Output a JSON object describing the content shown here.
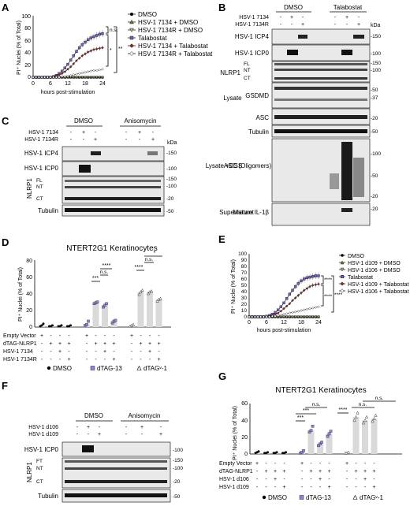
{
  "panels": [
    "A",
    "B",
    "C",
    "D",
    "E",
    "F",
    "G"
  ],
  "panel_a": {
    "ylabel": "PI⁺ Nuclei (% of Total)",
    "xlabel": "hours post-stimulation",
    "yticks": [
      "0",
      "20",
      "40",
      "60",
      "80",
      "100"
    ],
    "xticks": [
      "0",
      "6",
      "12",
      "18",
      "24"
    ],
    "legend": [
      "DMSO",
      "HSV-1 7134 + DMSO",
      "HSV-1 7134R + DMSO",
      "Talabostat",
      "HSV-1 7134 + Talabostat",
      "HSV-1 7134R + Talabostat"
    ],
    "sig": [
      "n.s.",
      "*",
      "**"
    ]
  },
  "panel_b": {
    "groups": [
      "DMSO",
      "Talabostat"
    ],
    "row_labels": [
      "HSV-1 7134",
      "HSV-1 7134R"
    ],
    "signs": [
      [
        "-",
        "+",
        "-",
        "-",
        "+",
        "-"
      ],
      [
        "-",
        "-",
        "+",
        "-",
        "-",
        "+"
      ]
    ],
    "kda": "kDa",
    "bands": [
      "HSV-1 ICP4",
      "HSV-1 ICP0",
      "NLRP1",
      "GSDMD",
      "ASC",
      "Tubulin",
      "ASC (Oligomers)",
      "Mature IL-1β"
    ],
    "sub_bands": [
      "FL",
      "NT",
      "CT"
    ],
    "sections": [
      "Lysate",
      "Lysate +DSS",
      "Supernatant"
    ],
    "markers": [
      "-150",
      "-100",
      "-150",
      "-100",
      "-50",
      "-37",
      "-20",
      "-50",
      "-100",
      "-50",
      "-20",
      "-20"
    ]
  },
  "panel_c": {
    "groups": [
      "DMSO",
      "Anisomycin"
    ],
    "row_labels": [
      "HSV-1 7134",
      "HSV-1 7134R"
    ],
    "signs": [
      [
        "-",
        "+",
        "-",
        "-",
        "+",
        "-"
      ],
      [
        "-",
        "-",
        "+",
        "-",
        "-",
        "+"
      ]
    ],
    "kda": "kDa",
    "bands": [
      "HSV-1 ICP4",
      "HSV-1 ICP0",
      "NLRP1",
      "Tubulin"
    ],
    "sub_bands": [
      "FL",
      "NT",
      "CT"
    ],
    "markers": [
      "-150",
      "-100",
      "-150",
      "-100",
      "-20",
      "-50"
    ]
  },
  "panel_d": {
    "title": "NTERT2G1 Keratinocytes",
    "ylabel": "PI⁺ Nuclei (% of Total)",
    "yticks": [
      "0",
      "20",
      "40",
      "60",
      "80"
    ],
    "row_labels": [
      "Empty Vector",
      "dTAG-NLRP1",
      "HSV-1 7134",
      "HSV-1 7134R"
    ],
    "signs": [
      [
        "+",
        "-",
        "-",
        "-",
        "+",
        "-",
        "-",
        "-",
        "+",
        "-",
        "-",
        "-"
      ],
      [
        "-",
        "+",
        "+",
        "+",
        "-",
        "+",
        "+",
        "+",
        "-",
        "+",
        "+",
        "+"
      ],
      [
        "-",
        "-",
        "+",
        "-",
        "-",
        "-",
        "+",
        "-",
        "-",
        "-",
        "+",
        "-"
      ],
      [
        "-",
        "-",
        "-",
        "+",
        "-",
        "-",
        "-",
        "+",
        "-",
        "-",
        "-",
        "+"
      ]
    ],
    "legend": [
      "DMSO",
      "dTAG-13",
      "dTAGᵛ-1"
    ],
    "sig": [
      "***",
      "****",
      "n.s.",
      "****",
      "n.s.",
      "*"
    ]
  },
  "panel_e": {
    "ylabel": "PI⁺ Nuclei (% of Total)",
    "xlabel": "hours post-stimulation",
    "yticks": [
      "0",
      "10",
      "20",
      "30",
      "40",
      "50",
      "60",
      "70",
      "80",
      "90",
      "100"
    ],
    "xticks": [
      "0",
      "6",
      "12",
      "18",
      "24"
    ],
    "legend": [
      "DMSO",
      "HSV-1 d109 + DMSO",
      "HSV-1 d106 + DMSO",
      "Talabostat",
      "HSV-1 d109 + Talabostat",
      "HSV-1 d106 + Talabostat"
    ],
    "sig": [
      "****",
      "****",
      "****"
    ]
  },
  "panel_f": {
    "groups": [
      "DMSO",
      "Anisomycin"
    ],
    "row_labels": [
      "HSV-1 d106",
      "HSV-1 d109"
    ],
    "signs": [
      [
        "-",
        "+",
        "-",
        "-",
        "+",
        "-"
      ],
      [
        "-",
        "-",
        "+",
        "-",
        "-",
        "+"
      ]
    ],
    "kda": "kDa",
    "bands": [
      "HSV-1 ICP0",
      "NLRP1",
      "Tubulin"
    ],
    "sub_bands": [
      "FT",
      "NT",
      "CT"
    ],
    "markers": [
      "-100",
      "-150",
      "-100",
      "-20",
      "-50"
    ]
  },
  "panel_g": {
    "title": "NTERT2G1 Keratinocytes",
    "ylabel": "PI⁺ Nuclei (% of Total)",
    "yticks": [
      "0",
      "20",
      "40",
      "60"
    ],
    "row_labels": [
      "Empty Vector",
      "dTAG-NLRP1",
      "HSV-1 d106",
      "HSV-1 d109"
    ],
    "signs": [
      [
        "+",
        "-",
        "-",
        "-",
        "+",
        "-",
        "-",
        "-",
        "+",
        "-",
        "-",
        "-"
      ],
      [
        "-",
        "+",
        "+",
        "+",
        "-",
        "+",
        "+",
        "+",
        "-",
        "+",
        "+",
        "+"
      ],
      [
        "-",
        "-",
        "+",
        "-",
        "-",
        "-",
        "+",
        "-",
        "-",
        "-",
        "+",
        "-"
      ],
      [
        "-",
        "-",
        "-",
        "+",
        "-",
        "-",
        "-",
        "+",
        "-",
        "-",
        "-",
        "+"
      ]
    ],
    "legend": [
      "DMSO",
      "dTAG-13",
      "dTAGᵛ-1"
    ],
    "sig": [
      "****",
      "***",
      "***",
      "n.s.",
      "n.s.",
      "n.s."
    ]
  },
  "chart_data": [
    {
      "type": "line",
      "panel": "A",
      "x": [
        0,
        1,
        2,
        3,
        4,
        5,
        6,
        7,
        8,
        9,
        10,
        11,
        12,
        13,
        14,
        15,
        16,
        17,
        18,
        19,
        20,
        21,
        22,
        23,
        24
      ],
      "ylim": [
        0,
        100
      ],
      "xlim": [
        0,
        24
      ],
      "series": [
        {
          "name": "DMSO",
          "values": [
            0,
            0,
            0,
            0,
            0,
            0,
            0,
            0,
            0,
            0,
            0,
            0,
            0,
            0,
            0,
            0,
            0,
            0,
            0,
            0,
            0,
            0,
            0,
            0,
            0
          ]
        },
        {
          "name": "HSV-1 7134 + DMSO",
          "values": [
            0,
            0,
            0,
            0,
            0,
            0,
            0,
            0,
            0,
            0,
            0,
            0,
            0,
            0,
            0,
            0,
            0,
            0,
            0,
            0,
            0,
            0,
            0,
            0,
            0
          ]
        },
        {
          "name": "HSV-1 7134R + DMSO",
          "values": [
            0,
            0,
            0,
            0,
            0,
            0,
            0,
            0,
            0,
            0,
            0,
            0,
            0,
            0,
            0,
            0,
            0,
            0,
            0,
            0,
            0,
            0,
            0,
            0,
            0
          ]
        },
        {
          "name": "Talabostat",
          "values": [
            0,
            0,
            0,
            0,
            0,
            0,
            0,
            1,
            3,
            6,
            10,
            15,
            21,
            28,
            35,
            42,
            48,
            53,
            57,
            61,
            64,
            66,
            68,
            70,
            71
          ]
        },
        {
          "name": "HSV-1 7134 + Talabostat",
          "values": [
            0,
            0,
            0,
            0,
            0,
            0,
            0,
            1,
            2,
            4,
            6,
            9,
            13,
            17,
            22,
            27,
            31,
            35,
            38,
            41,
            43,
            45,
            46,
            47,
            48
          ]
        },
        {
          "name": "HSV-1 7134R + Talabostat",
          "values": [
            0,
            0,
            0,
            0,
            0,
            0,
            0,
            0,
            0,
            0,
            1,
            1,
            2,
            3,
            4,
            5,
            6,
            7,
            8,
            9,
            10,
            11,
            11,
            12,
            13
          ]
        }
      ]
    },
    {
      "type": "bar",
      "panel": "D",
      "ylim": [
        0,
        80
      ],
      "categories": [
        "DMSO",
        "DMSO",
        "DMSO",
        "DMSO",
        "dTAG-13",
        "dTAG-13",
        "dTAG-13",
        "dTAG-13",
        "dTAGᵛ-1",
        "dTAGᵛ-1",
        "dTAGᵛ-1",
        "dTAGᵛ-1"
      ],
      "values": [
        2,
        1,
        1,
        1,
        3,
        29,
        26,
        7,
        2,
        42,
        42,
        33
      ],
      "points": [
        [
          1,
          2,
          4
        ],
        [
          1,
          1,
          2
        ],
        [
          1,
          1,
          2
        ],
        [
          1,
          1,
          2
        ],
        [
          2,
          3,
          7
        ],
        [
          28,
          29,
          30
        ],
        [
          24,
          26,
          28
        ],
        [
          5,
          7,
          8
        ],
        [
          1,
          2,
          3
        ],
        [
          39,
          42,
          44
        ],
        [
          40,
          42,
          43
        ],
        [
          31,
          33,
          34
        ]
      ]
    },
    {
      "type": "line",
      "panel": "E",
      "x": [
        0,
        1,
        2,
        3,
        4,
        5,
        6,
        7,
        8,
        9,
        10,
        11,
        12,
        13,
        14,
        15,
        16,
        17,
        18,
        19,
        20,
        21,
        22,
        23,
        24
      ],
      "ylim": [
        0,
        100
      ],
      "xlim": [
        0,
        24
      ],
      "series": [
        {
          "name": "DMSO",
          "values": [
            0,
            0,
            0,
            0,
            0,
            0,
            0,
            0,
            0,
            0,
            0,
            0,
            0,
            0,
            0,
            0,
            0,
            0,
            0,
            0,
            0,
            0,
            0,
            0,
            0
          ]
        },
        {
          "name": "HSV-1 d109 + DMSO",
          "values": [
            0,
            0,
            0,
            0,
            0,
            0,
            0,
            0,
            0,
            0,
            0,
            0,
            0,
            0,
            0,
            0,
            0,
            0,
            0,
            0,
            0,
            0,
            0,
            0,
            0
          ]
        },
        {
          "name": "HSV-1 d106 + DMSO",
          "values": [
            0,
            0,
            0,
            0,
            0,
            0,
            0,
            0,
            0,
            0,
            0,
            0,
            0,
            0,
            0,
            0,
            0,
            0,
            0,
            0,
            0,
            0,
            0,
            0,
            0
          ]
        },
        {
          "name": "Talabostat",
          "values": [
            0,
            0,
            0,
            0,
            0,
            0,
            1,
            2,
            4,
            7,
            11,
            16,
            22,
            29,
            36,
            42,
            48,
            53,
            57,
            60,
            62,
            63,
            64,
            65,
            65
          ]
        },
        {
          "name": "HSV-1 d109 + Talabostat",
          "values": [
            0,
            0,
            0,
            0,
            0,
            0,
            0,
            1,
            2,
            4,
            6,
            9,
            13,
            17,
            21,
            26,
            30,
            34,
            38,
            42,
            45,
            48,
            50,
            51,
            52
          ]
        },
        {
          "name": "HSV-1 d106 + Talabostat",
          "values": [
            0,
            0,
            0,
            0,
            0,
            0,
            0,
            0,
            1,
            1,
            2,
            3,
            4,
            5,
            6,
            7,
            8,
            9,
            10,
            11,
            12,
            13,
            14,
            15,
            16
          ]
        }
      ]
    },
    {
      "type": "bar",
      "panel": "G",
      "ylim": [
        0,
        60
      ],
      "categories": [
        "DMSO",
        "DMSO",
        "DMSO",
        "DMSO",
        "dTAG-13",
        "dTAG-13",
        "dTAG-13",
        "dTAG-13",
        "dTAGᵛ-1",
        "dTAGᵛ-1",
        "dTAGᵛ-1",
        "dTAGᵛ-1"
      ],
      "values": [
        2,
        1,
        1,
        1,
        2,
        28,
        12,
        24,
        1,
        44,
        40,
        42
      ],
      "points": [
        [
          1,
          2,
          3
        ],
        [
          1,
          1,
          2
        ],
        [
          1,
          1,
          2
        ],
        [
          1,
          1,
          2
        ],
        [
          1,
          2,
          4
        ],
        [
          26,
          28,
          33
        ],
        [
          10,
          12,
          14
        ],
        [
          21,
          24,
          27
        ],
        [
          1,
          1,
          2
        ],
        [
          40,
          44,
          49
        ],
        [
          37,
          40,
          44
        ],
        [
          39,
          42,
          46
        ]
      ]
    }
  ]
}
